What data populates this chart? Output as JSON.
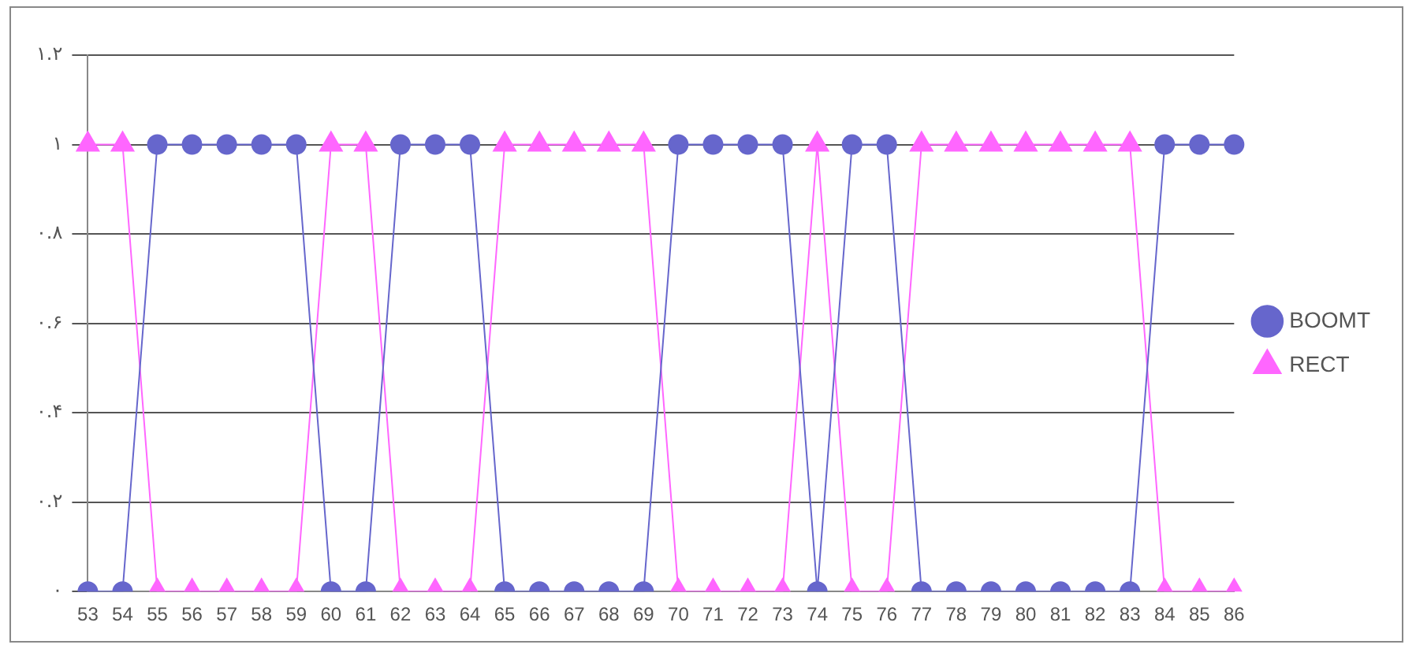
{
  "chart_data": {
    "type": "line",
    "categories": [
      "53",
      "54",
      "55",
      "56",
      "57",
      "58",
      "59",
      "60",
      "61",
      "62",
      "63",
      "64",
      "65",
      "66",
      "67",
      "68",
      "69",
      "70",
      "71",
      "72",
      "73",
      "74",
      "75",
      "76",
      "77",
      "78",
      "79",
      "80",
      "81",
      "82",
      "83",
      "84",
      "85",
      "86"
    ],
    "series": [
      {
        "name": "BOOMT",
        "color": "#6666cc",
        "marker": "circle",
        "values": [
          0,
          0,
          1,
          1,
          1,
          1,
          1,
          0,
          0,
          1,
          1,
          1,
          0,
          0,
          0,
          0,
          0,
          1,
          1,
          1,
          1,
          0,
          1,
          1,
          0,
          0,
          0,
          0,
          0,
          0,
          0,
          1,
          1,
          1
        ]
      },
      {
        "name": "RECT",
        "color": "#ff66ff",
        "marker": "triangle",
        "values": [
          1,
          1,
          0,
          0,
          0,
          0,
          0,
          1,
          1,
          0,
          0,
          0,
          1,
          1,
          1,
          1,
          1,
          0,
          0,
          0,
          0,
          1,
          0,
          0,
          1,
          1,
          1,
          1,
          1,
          1,
          1,
          0,
          0,
          0
        ]
      }
    ],
    "ylim": [
      0,
      1.2
    ],
    "yticks": [
      {
        "value": 0,
        "label": "۰"
      },
      {
        "value": 0.2,
        "label": "۰.۲"
      },
      {
        "value": 0.4,
        "label": "۰.۴"
      },
      {
        "value": 0.6,
        "label": "۰.۶"
      },
      {
        "value": 0.8,
        "label": "۰.۸"
      },
      {
        "value": 1,
        "label": "۱"
      },
      {
        "value": 1.2,
        "label": "۱.۲"
      }
    ],
    "grid": "y",
    "legend": "right"
  }
}
